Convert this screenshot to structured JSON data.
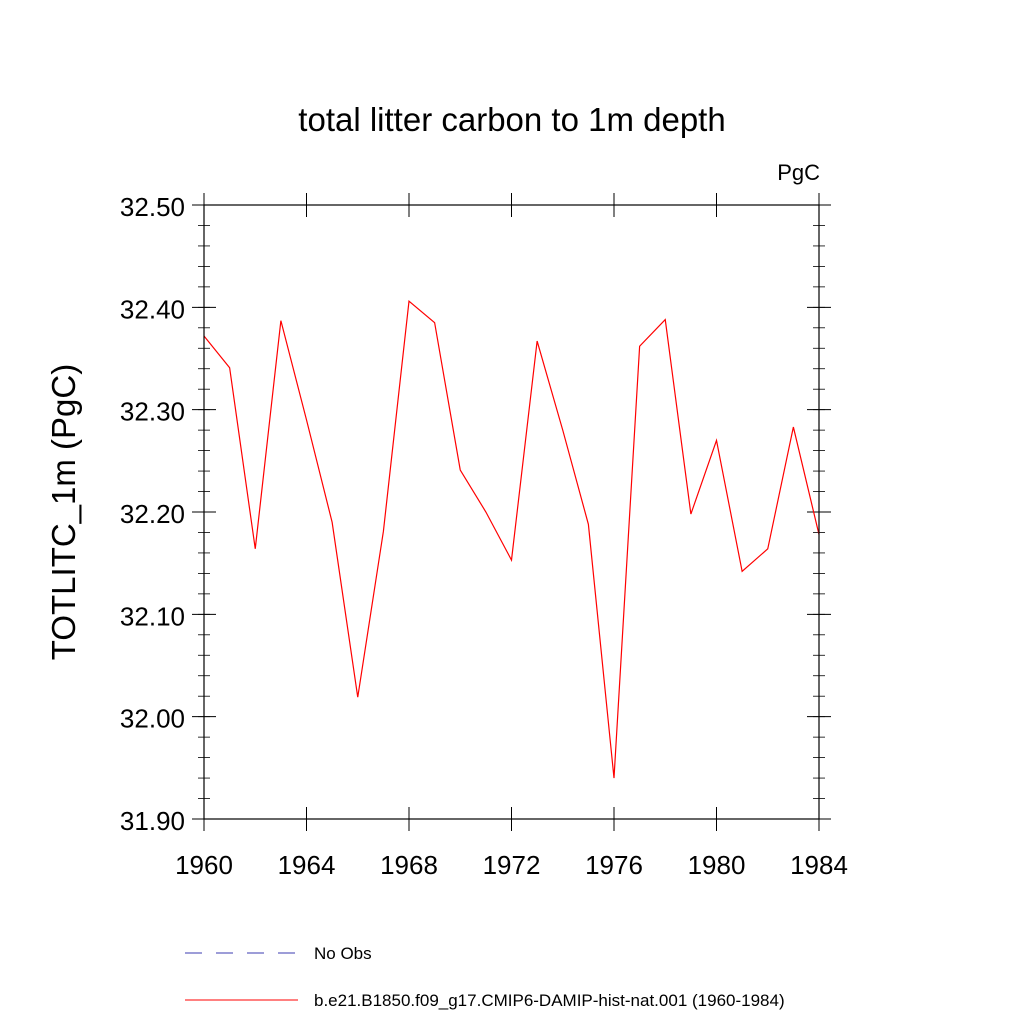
{
  "chart_data": {
    "type": "line",
    "title": "total litter carbon to 1m depth",
    "units": "PgC",
    "ylabel": "TOTLITC_1m  (PgC)",
    "xlabel": "",
    "xlim": [
      1960,
      1984
    ],
    "ylim": [
      31.9,
      32.5
    ],
    "xticks": [
      "1960",
      "1964",
      "1968",
      "1972",
      "1976",
      "1980",
      "1984"
    ],
    "yticks": [
      "31.90",
      "32.00",
      "32.10",
      "32.20",
      "32.30",
      "32.40",
      "32.50"
    ],
    "grid": false,
    "legend_position": "bottom",
    "legend": [
      {
        "label": "No Obs",
        "color": "#3b3bb0",
        "dash": "dashed"
      },
      {
        "label": "b.e21.B1850.f09_g17.CMIP6-DAMIP-hist-nat.001 (1960-1984)",
        "color": "#ff0000",
        "dash": "solid"
      }
    ],
    "series": [
      {
        "name": "b.e21.B1850.f09_g17.CMIP6-DAMIP-hist-nat.001 (1960-1984)",
        "color": "#ff0000",
        "x": [
          1960,
          1961,
          1962,
          1963,
          1964,
          1965,
          1966,
          1967,
          1968,
          1969,
          1970,
          1971,
          1972,
          1973,
          1974,
          1975,
          1976,
          1977,
          1978,
          1979,
          1980,
          1981,
          1982,
          1983,
          1984
        ],
        "y": [
          32.372,
          32.341,
          32.164,
          32.387,
          32.29,
          32.19,
          32.019,
          32.181,
          32.406,
          32.385,
          32.241,
          32.2,
          32.153,
          32.367,
          32.28,
          32.188,
          31.94,
          32.362,
          32.388,
          32.198,
          32.27,
          32.142,
          32.164,
          32.283,
          32.178
        ]
      }
    ]
  }
}
